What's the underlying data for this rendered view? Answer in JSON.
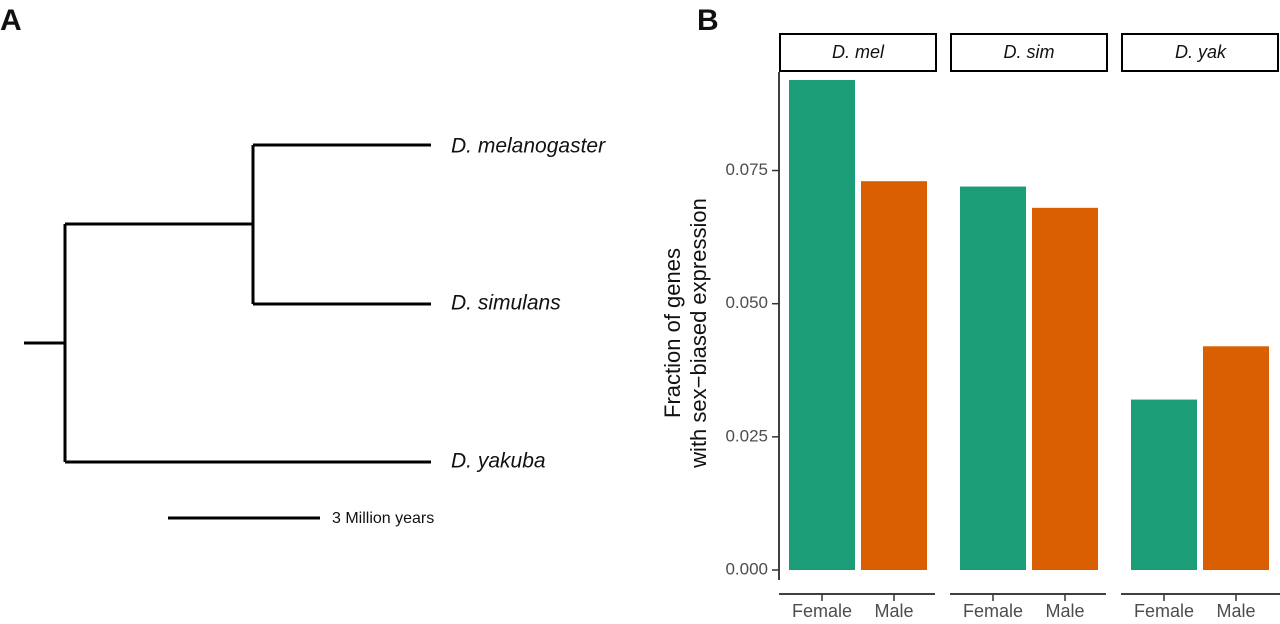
{
  "panels": {
    "a_label": "A",
    "b_label": "B"
  },
  "tree": {
    "species": [
      "D. melanogaster",
      "D. simulans",
      "D. yakuba"
    ],
    "scale_bar_label": "3 Million years"
  },
  "chart_data": {
    "type": "bar",
    "ylabel_line1": "Fraction of genes",
    "ylabel_line2": "with sex−biased expression",
    "xlabel": "",
    "ylim": [
      0,
      0.0935
    ],
    "yticks": [
      "0.000",
      "0.025",
      "0.050",
      "0.075"
    ],
    "ytick_values": [
      0,
      0.025,
      0.05,
      0.075
    ],
    "categories": [
      "Female",
      "Male"
    ],
    "colors": {
      "Female": "#1b9e77",
      "Male": "#d95f02"
    },
    "facets": [
      {
        "name": "D. mel",
        "values": [
          0.092,
          0.073
        ]
      },
      {
        "name": "D. sim",
        "values": [
          0.072,
          0.068
        ]
      },
      {
        "name": "D. yak",
        "values": [
          0.032,
          0.042
        ]
      }
    ],
    "grid": false,
    "legend": "none"
  }
}
